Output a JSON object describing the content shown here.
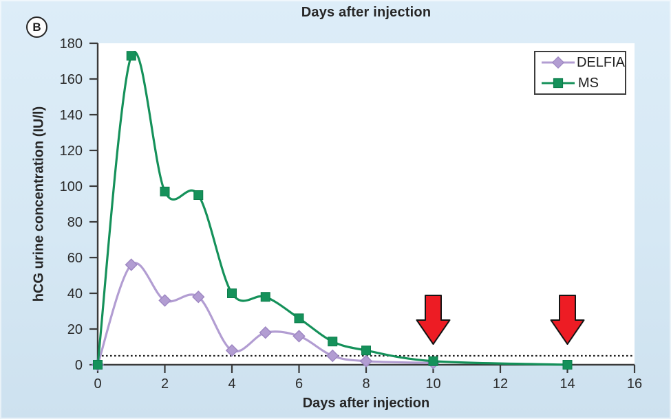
{
  "figure": {
    "panel_label": "B",
    "top_title": "Days after injection"
  },
  "chart_data": {
    "type": "line",
    "title": "Days after injection",
    "xlabel": "Days after injection",
    "ylabel": "hCG urine concentration (IU/l)",
    "xlim": [
      0,
      16
    ],
    "xtick_step": 2,
    "ylim": [
      0,
      180
    ],
    "ytick_step": 20,
    "grid": false,
    "legend_position": "top-right",
    "plot_background": "#ffffff",
    "axis_color": "#3a3a3a",
    "text_color": "#2a2a2a",
    "threshold_line": {
      "y": 5,
      "style": "dotted",
      "color": "#1f1f1f"
    },
    "series": [
      {
        "name": "DELFIA",
        "color": "#b29dd2",
        "marker_stroke": "#9d86c2",
        "marker": "diamond",
        "x": [
          0,
          1,
          2,
          3,
          4,
          5,
          6,
          7,
          8,
          10
        ],
        "y": [
          0,
          56,
          36,
          38,
          8,
          18,
          16,
          5,
          2,
          1
        ]
      },
      {
        "name": "MS",
        "color": "#15915a",
        "marker_stroke": "#0c7d4b",
        "marker": "square",
        "x": [
          0,
          1,
          2,
          3,
          4,
          5,
          6,
          7,
          8,
          10,
          14
        ],
        "y": [
          0,
          173,
          97,
          95,
          40,
          38,
          26,
          13,
          8,
          2,
          0
        ]
      }
    ],
    "annotations": [
      {
        "type": "arrow-down",
        "x": 10,
        "fill": "#ed1c24",
        "outline": "#151515"
      },
      {
        "type": "arrow-down",
        "x": 14,
        "fill": "#ed1c24",
        "outline": "#151515"
      }
    ]
  }
}
